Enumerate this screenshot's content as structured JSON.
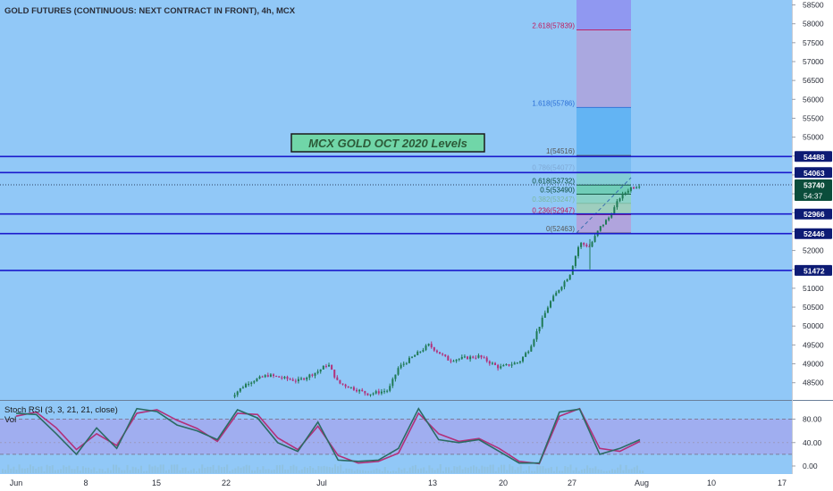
{
  "header": {
    "title": "GOLD FUTURES (CONTINUOUS: NEXT CONTRACT IN FRONT), 4h, MCX"
  },
  "annotation": {
    "label": "MCX GOLD OCT 2020 Levels"
  },
  "colors": {
    "background": "#91c8f7",
    "level_line": "#1a1acc",
    "bull_candle": "#1f7a55",
    "bear_candle": "#b2307a",
    "fib_label_blue": "#2b6fd6",
    "fib_label_pink": "#c2185b",
    "label_navy": "#0d1b74",
    "label_dark_green": "#0b4d3b",
    "stoch_k": "#2a6b63",
    "stoch_d": "#b2307a",
    "stoch_band": "#a6a6ee"
  },
  "chart_data": [
    {
      "type": "candlestick",
      "name": "price",
      "yaxis": {
        "ticks": [
          48500,
          49000,
          49500,
          50000,
          50500,
          51000,
          51500,
          52000,
          52500,
          53000,
          53500,
          54000,
          54500,
          55000,
          55500,
          56000,
          56500,
          57000,
          57500,
          58000,
          58500
        ],
        "range": [
          48000,
          58700
        ]
      },
      "xaxis": {
        "tick_labels": [
          "Jun",
          "8",
          "15",
          "22",
          "Jul",
          "13",
          "20",
          "27",
          "Aug",
          "10",
          "17"
        ]
      },
      "approx_close_path": [
        [
          "Jun 22",
          48050
        ],
        [
          "Jun 24",
          48500
        ],
        [
          "Jun 26",
          48700
        ],
        [
          "Jun 29",
          48550
        ],
        [
          "Jul 1",
          48800
        ],
        [
          "Jul 2",
          49000
        ],
        [
          "Jul 3",
          48500
        ],
        [
          "Jul 6",
          48200
        ],
        [
          "Jul 8",
          48300
        ],
        [
          "Jul 9",
          48900
        ],
        [
          "Jul 10",
          49100
        ],
        [
          "Jul 12",
          49500
        ],
        [
          "Jul 14",
          49100
        ],
        [
          "Jul 17",
          49200
        ],
        [
          "Jul 19",
          48900
        ],
        [
          "Jul 21",
          49050
        ],
        [
          "Jul 22",
          49400
        ],
        [
          "Jul 23",
          50000
        ],
        [
          "Jul 24",
          50600
        ],
        [
          "Jul 25",
          51000
        ],
        [
          "Jul 26",
          51350
        ],
        [
          "Jul 27",
          52200
        ],
        [
          "Jul 28",
          52100
        ],
        [
          "Jul 29",
          52600
        ],
        [
          "Jul 30",
          52900
        ],
        [
          "Jul 31",
          53400
        ],
        [
          "Aug 1",
          53650
        ],
        [
          "Aug 2",
          53740
        ]
      ],
      "levels": [
        {
          "value": 54488,
          "label": "54488"
        },
        {
          "value": 54063,
          "label": "54063"
        },
        {
          "value": 52966,
          "label": "52966"
        },
        {
          "value": 52446,
          "label": "52446"
        },
        {
          "value": 51472,
          "label": "51472"
        }
      ],
      "last_price": {
        "value": 53740,
        "label": "53740",
        "countdown": "54:37"
      },
      "fibonacci": [
        {
          "ratio": "2.618",
          "value": 57839,
          "text": "2.618(57839)",
          "color": "#c2185b"
        },
        {
          "ratio": "1.618",
          "value": 55786,
          "text": "1.618(55786)",
          "color": "#2b6fd6"
        },
        {
          "ratio": "1",
          "value": 54516,
          "text": "1(54516)",
          "color": "#555555"
        },
        {
          "ratio": "0.786",
          "value": 54077,
          "text": "0.786(54077)",
          "color": "#7fa9d6"
        },
        {
          "ratio": "0.618",
          "value": 53732,
          "text": "0.618(53732)",
          "color": "#0b4d3b"
        },
        {
          "ratio": "0.5",
          "value": 53490,
          "text": "0.5(53490)",
          "color": "#0b4d3b"
        },
        {
          "ratio": "0.382",
          "value": 53247,
          "text": "0.382(53247)",
          "color": "#7ab8a0"
        },
        {
          "ratio": "0.236",
          "value": 52947,
          "text": "0.236(52947)",
          "color": "#c2185b"
        },
        {
          "ratio": "0",
          "value": 52463,
          "text": "0(52463)",
          "color": "#555555"
        }
      ]
    },
    {
      "type": "line",
      "name": "stoch-rsi",
      "title": "Stoch RSI (3, 3, 21, 21, close)",
      "legend_extra": "Vol",
      "yaxis": {
        "ticks": [
          0,
          40,
          80
        ],
        "tick_labels": [
          "0.00",
          "40.00",
          "80.00"
        ],
        "range": [
          -6,
          102
        ]
      },
      "band": [
        20,
        80
      ],
      "x": [
        "Jun 1",
        "Jun 3",
        "Jun 5",
        "Jun 7",
        "Jun 9",
        "Jun 11",
        "Jun 13",
        "Jun 15",
        "Jun 17",
        "Jun 19",
        "Jun 21",
        "Jun 23",
        "Jun 25",
        "Jun 27",
        "Jun 29",
        "Jul 1",
        "Jul 3",
        "Jul 5",
        "Jul 7",
        "Jul 9",
        "Jul 11",
        "Jul 13",
        "Jul 15",
        "Jul 17",
        "Jul 19",
        "Jul 21",
        "Jul 23",
        "Jul 25",
        "Jul 27",
        "Jul 29",
        "Jul 31",
        "Aug 2"
      ],
      "series": [
        {
          "name": "K",
          "values": [
            90,
            88,
            55,
            20,
            65,
            30,
            98,
            93,
            70,
            60,
            45,
            96,
            82,
            40,
            25,
            75,
            10,
            8,
            10,
            30,
            98,
            45,
            40,
            45,
            25,
            5,
            5,
            92,
            97,
            20,
            30,
            45
          ]
        },
        {
          "name": "D",
          "values": [
            85,
            92,
            65,
            28,
            55,
            35,
            90,
            96,
            78,
            64,
            42,
            90,
            88,
            48,
            28,
            68,
            18,
            5,
            8,
            22,
            90,
            55,
            42,
            47,
            30,
            8,
            4,
            85,
            98,
            30,
            25,
            42
          ]
        }
      ]
    }
  ]
}
